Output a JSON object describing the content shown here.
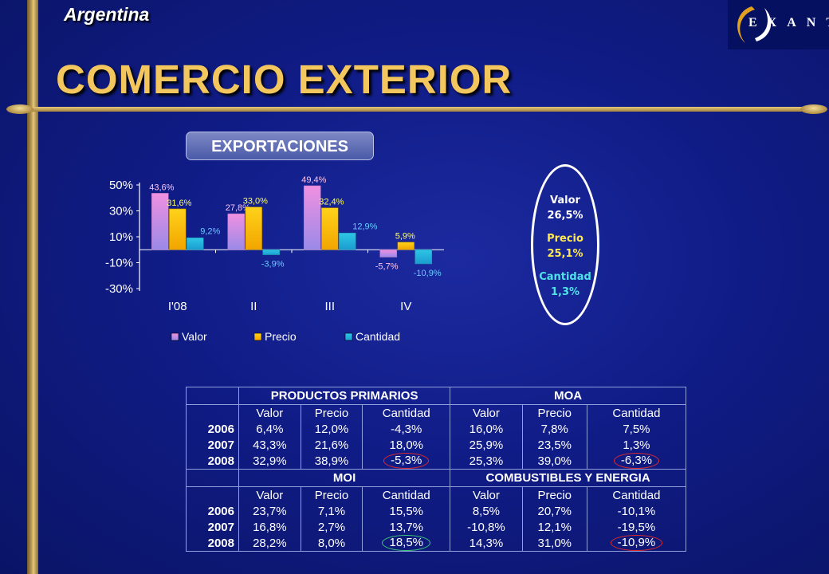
{
  "header": {
    "country": "Argentina",
    "title": "COMERCIO EXTERIOR",
    "logo_text": "EXANTE"
  },
  "section_label": "EXPORTACIONES",
  "chart_data": {
    "type": "bar",
    "categories": [
      "I'08",
      "II",
      "III",
      "IV"
    ],
    "series": [
      {
        "name": "Valor",
        "values": [
          43.6,
          27.8,
          49.4,
          -5.7
        ],
        "labels": [
          "43,6%",
          "27,8%",
          "49,4%",
          "-5,7%"
        ],
        "color": "#f090e0"
      },
      {
        "name": "Precio",
        "values": [
          31.6,
          33.0,
          32.4,
          5.9
        ],
        "labels": [
          "31,6%",
          "33,0%",
          "32,4%",
          "5,9%"
        ],
        "color": "#ffd21a"
      },
      {
        "name": "Cantidad",
        "values": [
          9.2,
          -3.9,
          12.9,
          -10.9
        ],
        "labels": [
          "9,2%",
          "-3,9%",
          "12,9%",
          "-10,9%"
        ],
        "color": "#2ec6e6"
      }
    ],
    "yticks": [
      50,
      30,
      10,
      -10,
      -30
    ],
    "ytick_labels": [
      "50%",
      "30%",
      "10%",
      "-10%",
      "-30%"
    ],
    "ylim": [
      -30,
      50
    ],
    "legend_position": "bottom",
    "label_colors": {
      "Valor": "#ffc4f0",
      "Precio": "#ffff66",
      "Cantidad": "#66ccff"
    }
  },
  "summary": {
    "valor_label": "Valor",
    "valor_value": "26,5%",
    "precio_label": "Precio",
    "precio_value": "25,1%",
    "cantidad_label": "Cantidad",
    "cantidad_value": "1,3%"
  },
  "table": {
    "blocks": [
      {
        "left_title": "PRODUCTOS PRIMARIOS",
        "right_title": "MOA",
        "col_headers": [
          "Valor",
          "Precio",
          "Cantidad",
          "Valor",
          "Precio",
          "Cantidad"
        ],
        "rows": [
          {
            "year": "2006",
            "cells": [
              "6,4%",
              "12,0%",
              "-4,3%",
              "16,0%",
              "7,8%",
              "7,5%"
            ]
          },
          {
            "year": "2007",
            "cells": [
              "43,3%",
              "21,6%",
              "18,0%",
              "25,9%",
              "23,5%",
              "1,3%"
            ]
          },
          {
            "year": "2008",
            "cells": [
              "32,9%",
              "38,9%",
              "-5,3%",
              "25,3%",
              "39,0%",
              "-6,3%"
            ]
          }
        ]
      },
      {
        "left_title": "MOI",
        "right_title": "COMBUSTIBLES Y ENERGIA",
        "col_headers": [
          "Valor",
          "Precio",
          "Cantidad",
          "Valor",
          "Precio",
          "Cantidad"
        ],
        "rows": [
          {
            "year": "2006",
            "cells": [
              "23,7%",
              "7,1%",
              "15,5%",
              "8,5%",
              "20,7%",
              "-10,1%"
            ]
          },
          {
            "year": "2007",
            "cells": [
              "16,8%",
              "2,7%",
              "13,7%",
              "-10,8%",
              "12,1%",
              "-19,5%"
            ]
          },
          {
            "year": "2008",
            "cells": [
              "28,2%",
              "8,0%",
              "18,5%",
              "14,3%",
              "31,0%",
              "-10,9%"
            ]
          }
        ]
      }
    ]
  }
}
